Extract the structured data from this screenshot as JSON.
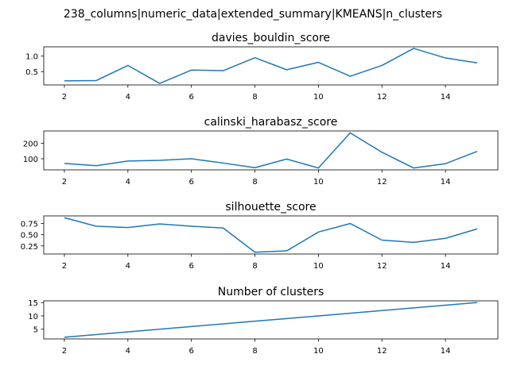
{
  "suptitle": "238_columns|numeric_data|extended_summary|KMEANS|n_clusters",
  "line_color": "#1f77b4",
  "chart_data": [
    {
      "type": "line",
      "title": "davies_bouldin_score",
      "x": [
        2,
        3,
        4,
        5,
        6,
        7,
        8,
        9,
        10,
        11,
        12,
        13,
        14,
        15
      ],
      "values": [
        0.2,
        0.21,
        0.7,
        0.12,
        0.55,
        0.53,
        0.95,
        0.56,
        0.8,
        0.35,
        0.7,
        1.25,
        0.94,
        0.78
      ],
      "xticks": [
        2,
        4,
        6,
        8,
        10,
        12,
        14
      ],
      "yticks": [
        0.5,
        1.0
      ],
      "ytick_labels": [
        "0.5",
        "1.0"
      ],
      "xlim": [
        1.35,
        15.65
      ],
      "ylim": [
        0.07,
        1.3
      ]
    },
    {
      "type": "line",
      "title": "calinski_harabasz_score",
      "x": [
        2,
        3,
        4,
        5,
        6,
        7,
        8,
        9,
        10,
        11,
        12,
        13,
        14,
        15
      ],
      "values": [
        70,
        55,
        85,
        90,
        100,
        72,
        42,
        98,
        40,
        268,
        142,
        40,
        68,
        148
      ],
      "xticks": [
        2,
        4,
        6,
        8,
        10,
        12,
        14
      ],
      "yticks": [
        100,
        200
      ],
      "ytick_labels": [
        "100",
        "200"
      ],
      "xlim": [
        1.35,
        15.65
      ],
      "ylim": [
        28,
        280
      ]
    },
    {
      "type": "line",
      "title": "silhouette_score",
      "x": [
        2,
        3,
        4,
        5,
        6,
        7,
        8,
        9,
        10,
        11,
        12,
        13,
        14,
        15
      ],
      "values": [
        0.88,
        0.69,
        0.66,
        0.74,
        0.69,
        0.65,
        0.11,
        0.14,
        0.56,
        0.75,
        0.38,
        0.33,
        0.42,
        0.63
      ],
      "xticks": [
        2,
        4,
        6,
        8,
        10,
        12,
        14
      ],
      "yticks": [
        0.25,
        0.5,
        0.75
      ],
      "ytick_labels": [
        "0.25",
        "0.50",
        "0.75"
      ],
      "xlim": [
        1.35,
        15.65
      ],
      "ylim": [
        0.07,
        0.92
      ]
    },
    {
      "type": "line",
      "title": "Number of clusters",
      "x": [
        2,
        3,
        4,
        5,
        6,
        7,
        8,
        9,
        10,
        11,
        12,
        13,
        14,
        15
      ],
      "values": [
        2,
        3,
        4,
        5,
        6,
        7,
        8,
        9,
        10,
        11,
        12,
        13,
        14,
        15
      ],
      "xticks": [
        2,
        4,
        6,
        8,
        10,
        12,
        14
      ],
      "yticks": [
        5,
        10,
        15
      ],
      "ytick_labels": [
        "5",
        "10",
        "15"
      ],
      "xlim": [
        1.35,
        15.65
      ],
      "ylim": [
        1.35,
        15.65
      ]
    }
  ]
}
